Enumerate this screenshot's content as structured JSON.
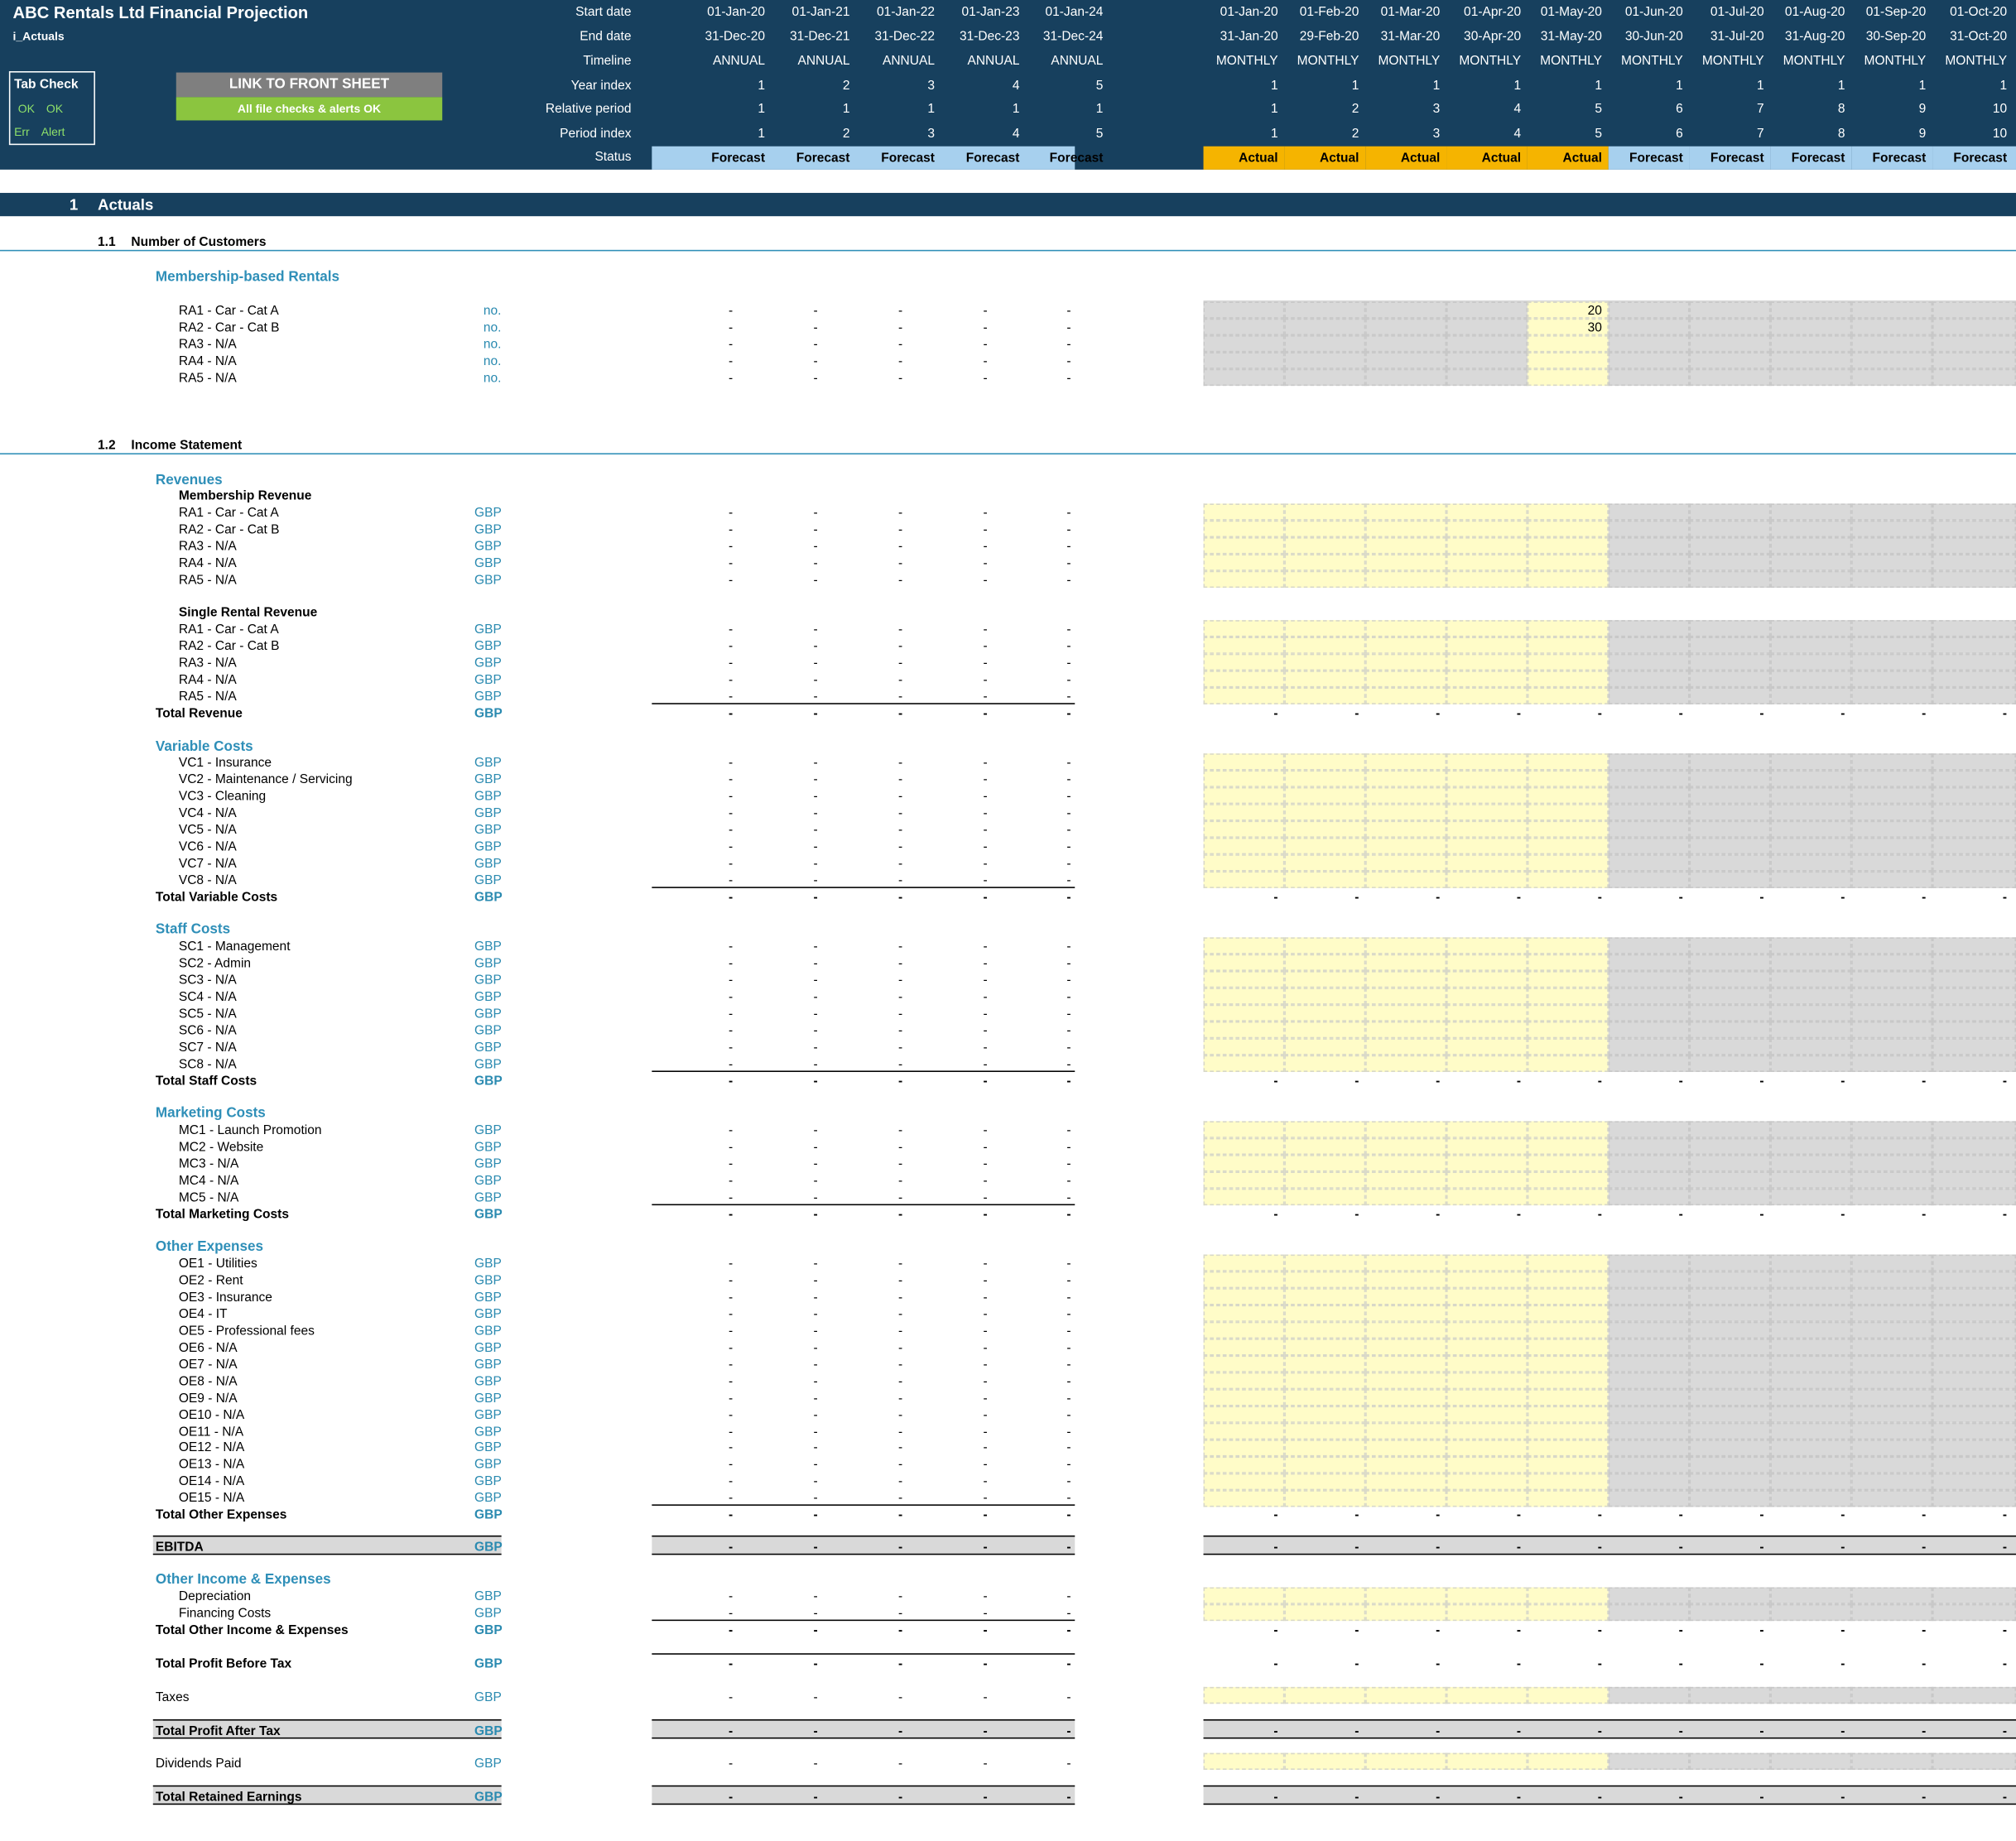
{
  "header": {
    "title": "ABC  Rentals Ltd Financial Projection",
    "tab": "i_Actuals",
    "tab_check": {
      "title": "Tab Check",
      "ok1": "OK",
      "ok2": "OK",
      "err": "Err",
      "alert": "Alert"
    },
    "link_button": "LINK TO FRONT SHEET",
    "checks_status": "All file checks & alerts OK"
  },
  "timeline": {
    "row_labels": [
      "Start date",
      "End date",
      "Timeline",
      "Year index",
      "Relative period",
      "Period index",
      "Status"
    ],
    "annual": [
      {
        "start": "01-Jan-20",
        "end": "31-Dec-20",
        "timeline": "ANNUAL",
        "year": "1",
        "rel": "1",
        "idx": "1",
        "status": "Forecast"
      },
      {
        "start": "01-Jan-21",
        "end": "31-Dec-21",
        "timeline": "ANNUAL",
        "year": "2",
        "rel": "1",
        "idx": "2",
        "status": "Forecast"
      },
      {
        "start": "01-Jan-22",
        "end": "31-Dec-22",
        "timeline": "ANNUAL",
        "year": "3",
        "rel": "1",
        "idx": "3",
        "status": "Forecast"
      },
      {
        "start": "01-Jan-23",
        "end": "31-Dec-23",
        "timeline": "ANNUAL",
        "year": "4",
        "rel": "1",
        "idx": "4",
        "status": "Forecast"
      },
      {
        "start": "01-Jan-24",
        "end": "31-Dec-24",
        "timeline": "ANNUAL",
        "year": "5",
        "rel": "1",
        "idx": "5",
        "status": "Forecast"
      }
    ],
    "monthly": [
      {
        "start": "01-Jan-20",
        "end": "31-Jan-20",
        "timeline": "MONTHLY",
        "year": "1",
        "rel": "1",
        "idx": "1",
        "status": "Actual"
      },
      {
        "start": "01-Feb-20",
        "end": "29-Feb-20",
        "timeline": "MONTHLY",
        "year": "1",
        "rel": "2",
        "idx": "2",
        "status": "Actual"
      },
      {
        "start": "01-Mar-20",
        "end": "31-Mar-20",
        "timeline": "MONTHLY",
        "year": "1",
        "rel": "3",
        "idx": "3",
        "status": "Actual"
      },
      {
        "start": "01-Apr-20",
        "end": "30-Apr-20",
        "timeline": "MONTHLY",
        "year": "1",
        "rel": "4",
        "idx": "4",
        "status": "Actual"
      },
      {
        "start": "01-May-20",
        "end": "31-May-20",
        "timeline": "MONTHLY",
        "year": "1",
        "rel": "5",
        "idx": "5",
        "status": "Actual"
      },
      {
        "start": "01-Jun-20",
        "end": "30-Jun-20",
        "timeline": "MONTHLY",
        "year": "1",
        "rel": "6",
        "idx": "6",
        "status": "Forecast"
      },
      {
        "start": "01-Jul-20",
        "end": "31-Jul-20",
        "timeline": "MONTHLY",
        "year": "1",
        "rel": "7",
        "idx": "7",
        "status": "Forecast"
      },
      {
        "start": "01-Aug-20",
        "end": "31-Aug-20",
        "timeline": "MONTHLY",
        "year": "1",
        "rel": "8",
        "idx": "8",
        "status": "Forecast"
      },
      {
        "start": "01-Sep-20",
        "end": "30-Sep-20",
        "timeline": "MONTHLY",
        "year": "1",
        "rel": "9",
        "idx": "9",
        "status": "Forecast"
      },
      {
        "start": "01-Oct-20",
        "end": "31-Oct-20",
        "timeline": "MONTHLY",
        "year": "1",
        "rel": "10",
        "idx": "10",
        "status": "Forecast"
      }
    ]
  },
  "colors": {
    "header_bg": "#17405e",
    "actual": "#f5b400",
    "forecast": "#a7d0ee",
    "link_button": "#7f7f7f",
    "checks_ok": "#8bc53f",
    "input_yellow": "#fffcc8",
    "locked_gray": "#d9d9d9",
    "section_teal": "#2f8fb8"
  },
  "dash": "-",
  "section": {
    "num": "1",
    "title": "Actuals"
  },
  "customers": {
    "num": "1.1",
    "title": "Number of Customers",
    "group": "Membership-based Rentals",
    "unit": "no.",
    "items": [
      {
        "label": "RA1 - Car - Cat A",
        "may": "20"
      },
      {
        "label": "RA2 - Car - Cat B",
        "may": "30"
      },
      {
        "label": "RA3 - N/A",
        "may": ""
      },
      {
        "label": "RA4 - N/A",
        "may": ""
      },
      {
        "label": "RA5 - N/A",
        "may": ""
      }
    ]
  },
  "income": {
    "num": "1.2",
    "title": "Income Statement",
    "unit": "GBP",
    "revenues": {
      "title": "Revenues",
      "membership_title": "Membership Revenue",
      "membership": [
        "RA1 - Car - Cat A",
        "RA2 - Car - Cat B",
        "RA3 - N/A",
        "RA4 - N/A",
        "RA5 - N/A"
      ],
      "single_title": "Single Rental Revenue",
      "single": [
        "RA1 - Car - Cat A",
        "RA2 - Car - Cat B",
        "RA3 - N/A",
        "RA4 - N/A",
        "RA5 - N/A"
      ],
      "total": "Total Revenue"
    },
    "variable": {
      "title": "Variable Costs",
      "items": [
        "VC1 - Insurance",
        "VC2 - Maintenance / Servicing",
        "VC3 - Cleaning",
        "VC4 - N/A",
        "VC5 - N/A",
        "VC6 - N/A",
        "VC7 - N/A",
        "VC8 - N/A"
      ],
      "total": "Total Variable Costs"
    },
    "staff": {
      "title": "Staff Costs",
      "items": [
        "SC1 - Management",
        "SC2 - Admin",
        "SC3 - N/A",
        "SC4 - N/A",
        "SC5 - N/A",
        "SC6 - N/A",
        "SC7 - N/A",
        "SC8 - N/A"
      ],
      "total": "Total Staff Costs"
    },
    "marketing": {
      "title": "Marketing Costs",
      "items": [
        "MC1 - Launch Promotion",
        "MC2 - Website",
        "MC3 - N/A",
        "MC4 - N/A",
        "MC5 - N/A"
      ],
      "total": "Total Marketing Costs"
    },
    "other": {
      "title": "Other Expenses",
      "items": [
        "OE1 - Utilities",
        "OE2 - Rent",
        "OE3 - Insurance",
        "OE4 - IT",
        "OE5 - Professional fees",
        "OE6 - N/A",
        "OE7 - N/A",
        "OE8 - N/A",
        "OE9 - N/A",
        "OE10 - N/A",
        "OE11 - N/A",
        "OE12 - N/A",
        "OE13 - N/A",
        "OE14 - N/A",
        "OE15 - N/A"
      ],
      "total": "Total Other Expenses"
    },
    "ebitda": "EBITDA",
    "oie": {
      "title": "Other Income & Expenses",
      "items": [
        "Depreciation",
        "Financing Costs"
      ],
      "total": "Total Other Income & Expenses"
    },
    "pbt": "Total Profit Before Tax",
    "taxes": "Taxes",
    "pat": "Total Profit After Tax",
    "dividends": "Dividends Paid",
    "retained": "Total Retained Earnings"
  }
}
